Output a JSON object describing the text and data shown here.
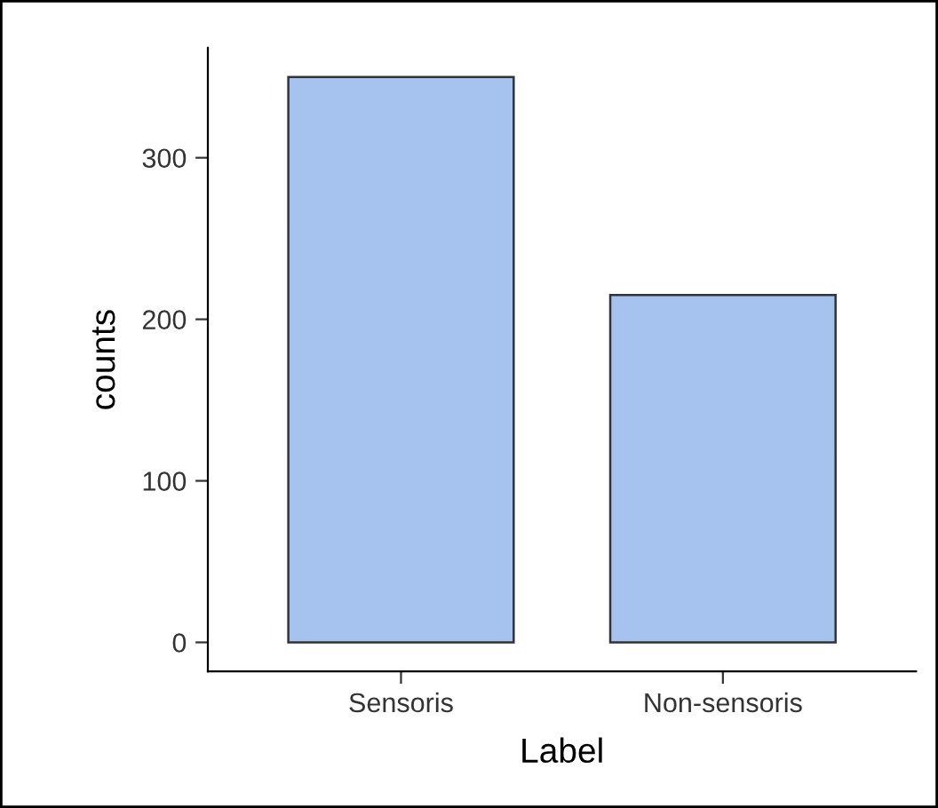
{
  "chart_data": {
    "type": "bar",
    "xlabel": "Label",
    "ylabel": "counts",
    "categories": [
      "Sensoris",
      "Non-sensoris"
    ],
    "values": [
      350,
      215
    ],
    "color": "#a6c3f0",
    "ylim": [
      -18,
      368
    ],
    "yticks": [
      0,
      100,
      200,
      300
    ],
    "grid": false,
    "legend": false
  }
}
